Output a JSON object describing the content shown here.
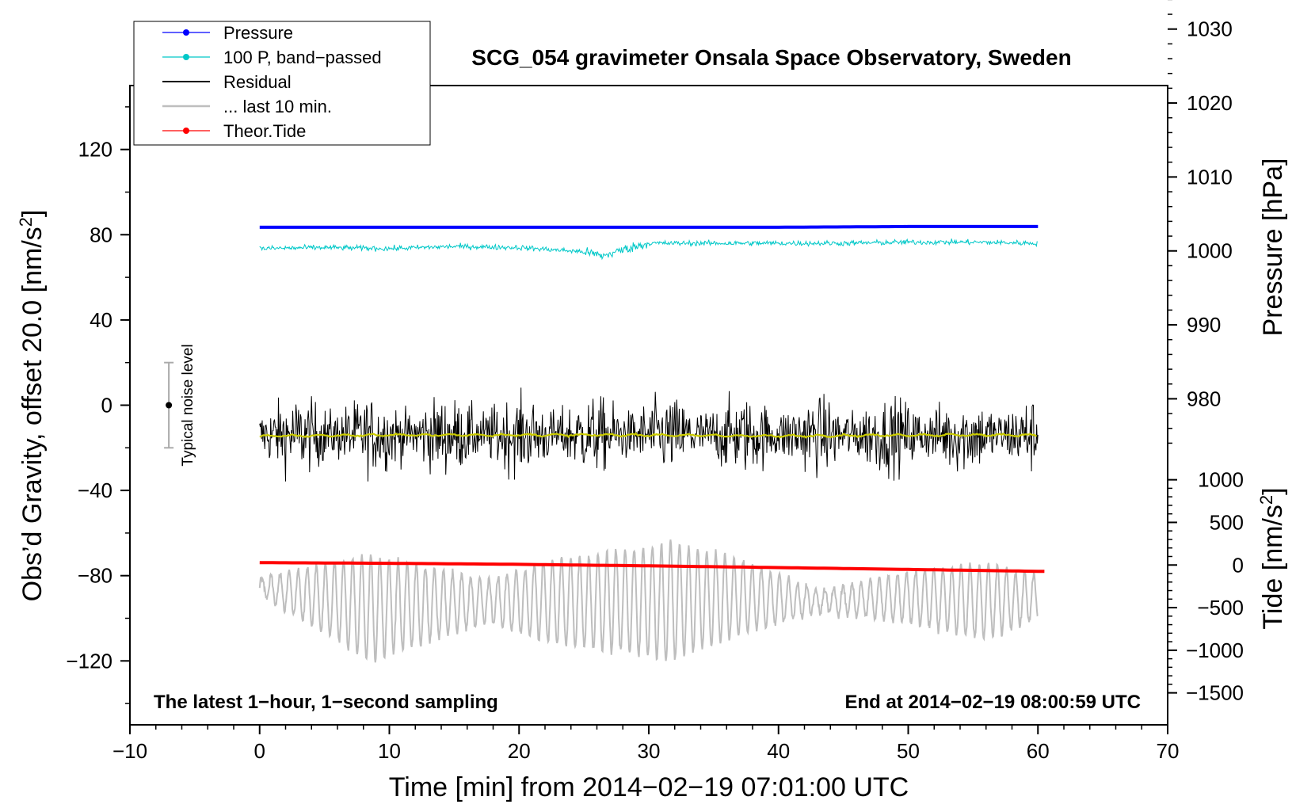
{
  "chart_data": {
    "type": "line",
    "title": "SCG_054 gravimeter Onsala Space Observatory, Sweden",
    "xlabel": "Time [min] from 2014−02−19 07:01:00 UTC",
    "ylabel": "Obs’d Gravity, offset 20.0 [nm/s",
    "ylabel_sup": "2",
    "ylabel_tail": "]",
    "y2label": "Pressure [hPa]",
    "y3label": "Tide [nm/s",
    "y3label_sup": "2",
    "y3label_tail": "]",
    "xlim": [
      -10,
      70
    ],
    "ylim": [
      -150,
      150
    ],
    "x_ticks": [
      -10,
      0,
      10,
      20,
      30,
      40,
      50,
      60,
      70
    ],
    "x_tick_labels": [
      "−10",
      "0",
      "10",
      "20",
      "30",
      "40",
      "50",
      "60",
      "70"
    ],
    "y_ticks": [
      -120,
      -80,
      -40,
      0,
      40,
      80,
      120
    ],
    "y_tick_labels": [
      "−120",
      "−80",
      "−40",
      "0",
      "40",
      "80",
      "120"
    ],
    "pressure_axis": {
      "ticks": [
        980,
        990,
        1000,
        1010,
        1020,
        1030
      ],
      "tick_labels": [
        "980",
        "990",
        "1000",
        "1010",
        "1020",
        "1030"
      ],
      "gravity_per_hpa": 3.47,
      "gravity_at_1000": 72.4
    },
    "tide_axis": {
      "ticks": [
        -1500,
        -1000,
        -500,
        0,
        500,
        1000
      ],
      "tick_labels": [
        "−1500",
        "−1000",
        "−500",
        "0",
        "500",
        "1000"
      ],
      "gravity_per_unit": 0.04,
      "gravity_at_zero": -75
    },
    "footnote_left": "The latest 1−hour, 1−second sampling",
    "footnote_right": "End at 2014−02−19 08:00:59 UTC",
    "noise_bar": {
      "label": "Typical noise level",
      "x": -7,
      "center": 0,
      "low": -20,
      "high": 20
    },
    "legend": [
      {
        "label": "Pressure",
        "color": "#0000ff",
        "marker": true
      },
      {
        "label": "100 P, band−passed",
        "color": "#00c8c8",
        "marker": true
      },
      {
        "label": "Residual",
        "color": "#000000",
        "marker": false
      },
      {
        "label": "... last 10 min.",
        "color": "#bebebe",
        "marker": false
      },
      {
        "label": "Theor.Tide",
        "color": "#ff0000",
        "marker": true
      }
    ],
    "series": [
      {
        "name": "Pressure",
        "color": "#0000ff",
        "x": [
          0,
          10,
          20,
          30,
          40,
          50,
          60
        ],
        "values": [
          1003.2,
          1003.2,
          1003.2,
          1003.2,
          1003.2,
          1003.3,
          1003.3
        ]
      },
      {
        "name": "100 P, band−passed",
        "color": "#00c8c8",
        "x": [
          0,
          5,
          10,
          15,
          20,
          25,
          26.5,
          28,
          30,
          35,
          40,
          45,
          50,
          55,
          60
        ],
        "values": [
          73.5,
          74,
          73.5,
          74.5,
          74,
          72,
          70,
          73,
          76,
          76,
          76,
          76,
          76.5,
          76.5,
          76
        ],
        "noise_amplitude": 2.5
      },
      {
        "name": "Residual",
        "color": "#000000",
        "x": [
          0,
          60
        ],
        "values": [
          -14,
          -14
        ],
        "noise_amplitude": 24
      },
      {
        "name": "Residual (smoothed)",
        "color": "#cccc00",
        "x": [
          0,
          10,
          20,
          30,
          40,
          50,
          60
        ],
        "values": [
          -14.5,
          -14,
          -14,
          -14,
          -14.5,
          -14,
          -14
        ]
      },
      {
        "name": "... last 10 min.",
        "color": "#bebebe",
        "x": [
          0,
          8.5,
          17.5,
          22.5,
          29.5,
          31.5,
          37,
          43,
          50,
          56,
          60
        ],
        "values": [
          -85,
          -95,
          -92,
          -92,
          -92,
          -92,
          -90,
          -92,
          -90,
          -92,
          -90
        ],
        "oscillation_period": 0.7,
        "amplitude_profile": [
          4,
          25,
          10,
          20,
          25,
          28,
          18,
          5,
          12,
          18,
          10
        ]
      },
      {
        "name": "Theor.Tide",
        "color": "#ff0000",
        "x": [
          0,
          10,
          20,
          30,
          40,
          50,
          60.5
        ],
        "values": [
          28,
          20,
          8,
          -10,
          -30,
          -52,
          -75
        ]
      }
    ]
  }
}
